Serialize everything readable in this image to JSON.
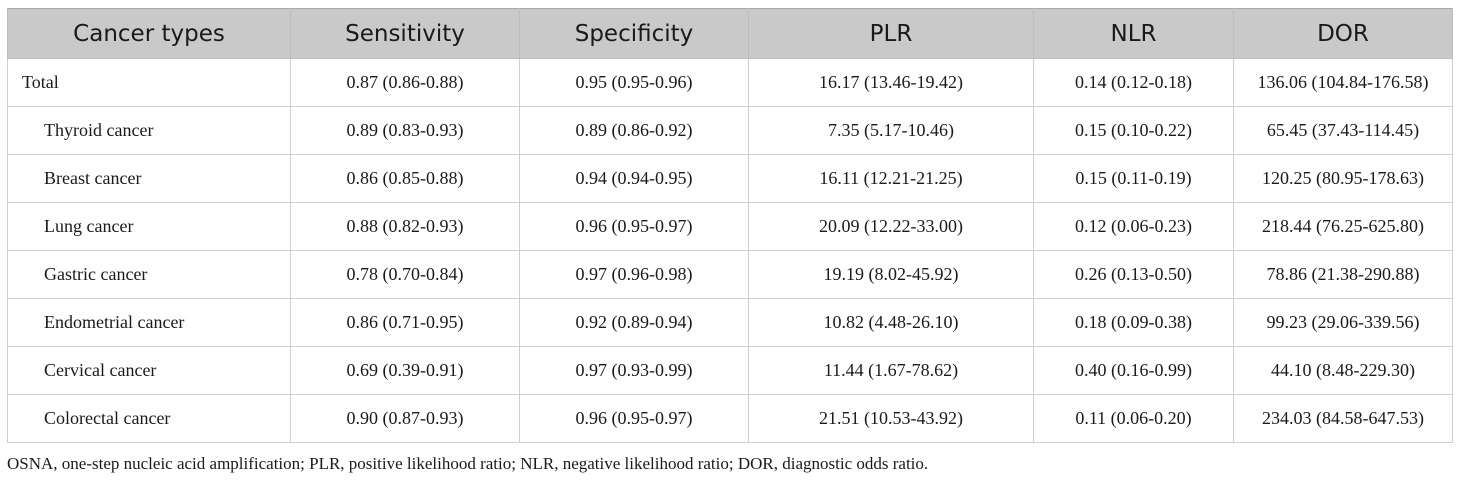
{
  "table": {
    "headers": [
      "Cancer types",
      "Sensitivity",
      "Specificity",
      "PLR",
      "NLR",
      "DOR"
    ],
    "rows": [
      {
        "label": "Total",
        "indent": false,
        "values": [
          "0.87 (0.86-0.88)",
          "0.95 (0.95-0.96)",
          "16.17 (13.46-19.42)",
          "0.14 (0.12-0.18)",
          "136.06 (104.84-176.58)"
        ]
      },
      {
        "label": "Thyroid cancer",
        "indent": true,
        "values": [
          "0.89 (0.83-0.93)",
          "0.89 (0.86-0.92)",
          "7.35 (5.17-10.46)",
          "0.15 (0.10-0.22)",
          "65.45 (37.43-114.45)"
        ]
      },
      {
        "label": "Breast cancer",
        "indent": true,
        "values": [
          "0.86 (0.85-0.88)",
          "0.94 (0.94-0.95)",
          "16.11 (12.21-21.25)",
          "0.15 (0.11-0.19)",
          "120.25 (80.95-178.63)"
        ]
      },
      {
        "label": "Lung cancer",
        "indent": true,
        "values": [
          "0.88 (0.82-0.93)",
          "0.96 (0.95-0.97)",
          "20.09 (12.22-33.00)",
          "0.12 (0.06-0.23)",
          "218.44 (76.25-625.80)"
        ]
      },
      {
        "label": "Gastric cancer",
        "indent": true,
        "values": [
          "0.78 (0.70-0.84)",
          "0.97 (0.96-0.98)",
          "19.19 (8.02-45.92)",
          "0.26 (0.13-0.50)",
          "78.86 (21.38-290.88)"
        ]
      },
      {
        "label": "Endometrial cancer",
        "indent": true,
        "values": [
          "0.86 (0.71-0.95)",
          "0.92 (0.89-0.94)",
          "10.82 (4.48-26.10)",
          "0.18 (0.09-0.38)",
          "99.23 (29.06-339.56)"
        ]
      },
      {
        "label": "Cervical cancer",
        "indent": true,
        "values": [
          "0.69 (0.39-0.91)",
          "0.97 (0.93-0.99)",
          "11.44 (1.67-78.62)",
          "0.40 (0.16-0.99)",
          "44.10 (8.48-229.30)"
        ]
      },
      {
        "label": "Colorectal cancer",
        "indent": true,
        "values": [
          "0.90 (0.87-0.93)",
          "0.96 (0.95-0.97)",
          "21.51 (10.53-43.92)",
          "0.11 (0.06-0.20)",
          "234.03 (84.58-647.53)"
        ]
      }
    ]
  },
  "footnote": "OSNA, one-step nucleic acid amplification; PLR, positive likelihood ratio; NLR, negative likelihood ratio; DOR, diagnostic odds ratio."
}
